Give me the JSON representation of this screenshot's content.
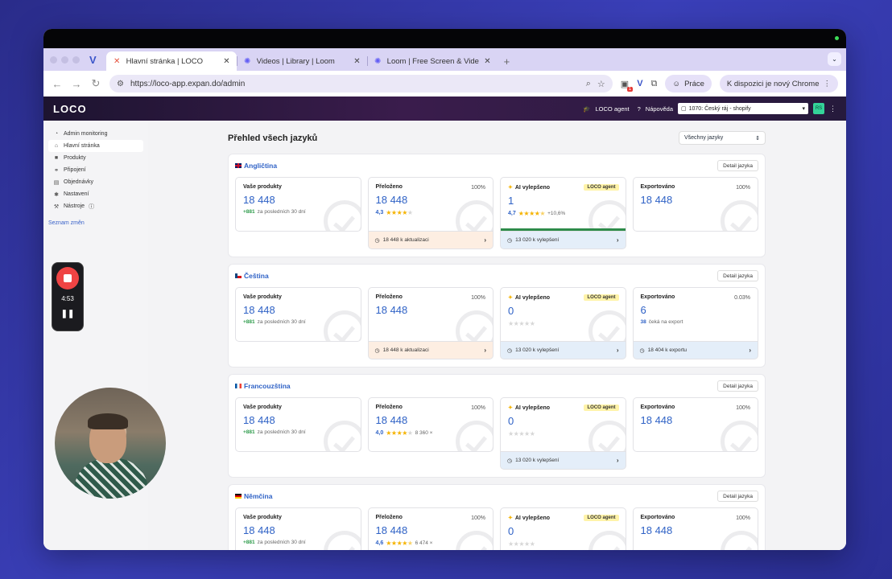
{
  "browser": {
    "tabs": [
      {
        "label": "Hlavní stránka | LOCO",
        "icon": "loco-favicon-icon",
        "active": true
      },
      {
        "label": "Videos | Library | Loom",
        "icon": "loom-favicon-icon",
        "active": false
      },
      {
        "label": "Loom | Free Screen & Video R",
        "icon": "loom-favicon-icon",
        "active": false
      }
    ],
    "url": "https://loco-app.expan.do/admin",
    "profile_label": "Práce",
    "update_label": "K dispozici je nový Chrome",
    "ext_badge": "1"
  },
  "app": {
    "logo": "LOCO",
    "agent_label": "LOCO agent",
    "help_label": "Nápověda",
    "store_select": "1070: Český ráj - shopify",
    "avatar": "RS"
  },
  "sidebar": {
    "items": [
      {
        "label": "Admin monitoring",
        "icon": "gauge-icon"
      },
      {
        "label": "Hlavní stránka",
        "icon": "home-icon"
      },
      {
        "label": "Produkty",
        "icon": "box-icon"
      },
      {
        "label": "Připojení",
        "icon": "link-icon"
      },
      {
        "label": "Objednávky",
        "icon": "orders-icon"
      },
      {
        "label": "Nastavení",
        "icon": "gear-icon"
      },
      {
        "label": "Nástroje",
        "icon": "tools-icon"
      }
    ],
    "changes_link": "Seznam změn"
  },
  "main": {
    "title": "Přehled všech jazyků",
    "lang_filter": "Všechny jazyky",
    "detail_label": "Detail jazyka",
    "sections": [
      {
        "name": "Angličtina",
        "products": {
          "title": "Vaše produkty",
          "value": "18 448",
          "delta": "+881",
          "delta_text": "za posledních 30 dní"
        },
        "translated": {
          "title": "Přeloženo",
          "pct": "100%",
          "value": "18 448",
          "rating": "4,3",
          "stars": 4,
          "foot": "18 448 k aktualizaci"
        },
        "ai": {
          "title": "AI vylepšeno",
          "badge": "LOCO agent",
          "value": "1",
          "rating": "4,7",
          "stars": 4.5,
          "extra": "+10,6%",
          "foot": "13 020 k vylepšení"
        },
        "exported": {
          "title": "Exportováno",
          "pct": "100%",
          "value": "18 448"
        }
      },
      {
        "name": "Čeština",
        "products": {
          "title": "Vaše produkty",
          "value": "18 448",
          "delta": "+881",
          "delta_text": "za posledních 30 dní"
        },
        "translated": {
          "title": "Přeloženo",
          "pct": "100%",
          "value": "18 448",
          "foot": "18 448 k aktualizaci"
        },
        "ai": {
          "title": "AI vylepšeno",
          "badge": "LOCO agent",
          "value": "0",
          "stars": 0,
          "foot": "13 020 k vylepšení"
        },
        "exported": {
          "title": "Exportováno",
          "pct": "0.03%",
          "value": "6",
          "sub_num": "38",
          "sub_text": "čeká na export",
          "foot": "18 404 k exportu"
        }
      },
      {
        "name": "Francouzština",
        "products": {
          "title": "Vaše produkty",
          "value": "18 448",
          "delta": "+881",
          "delta_text": "za posledních 30 dní"
        },
        "translated": {
          "title": "Přeloženo",
          "pct": "100%",
          "value": "18 448",
          "rating": "4,0",
          "stars": 4,
          "extra": "8 360 ×"
        },
        "ai": {
          "title": "AI vylepšeno",
          "badge": "LOCO agent",
          "value": "0",
          "stars": 0,
          "foot": "13 020 k vylepšení"
        },
        "exported": {
          "title": "Exportováno",
          "pct": "100%",
          "value": "18 448"
        }
      },
      {
        "name": "Němčina",
        "products": {
          "title": "Vaše produkty",
          "value": "18 448",
          "delta": "+881",
          "delta_text": "za posledních 30 dní"
        },
        "translated": {
          "title": "Přeloženo",
          "pct": "100%",
          "value": "18 448",
          "rating": "4,6",
          "stars": 4.5,
          "extra": "6 474 ×"
        },
        "ai": {
          "title": "AI vylepšeno",
          "badge": "LOCO agent",
          "value": "0",
          "stars": 0
        },
        "exported": {
          "title": "Exportováno",
          "pct": "100%",
          "value": "18 448"
        }
      }
    ]
  },
  "recorder": {
    "time": "4:53"
  },
  "colors": {
    "accent": "#2f62c6",
    "green": "#2e8b4a",
    "orange_foot": "#fdeee2",
    "blue_foot": "#e4eef9",
    "rec_red": "#ef4444"
  }
}
